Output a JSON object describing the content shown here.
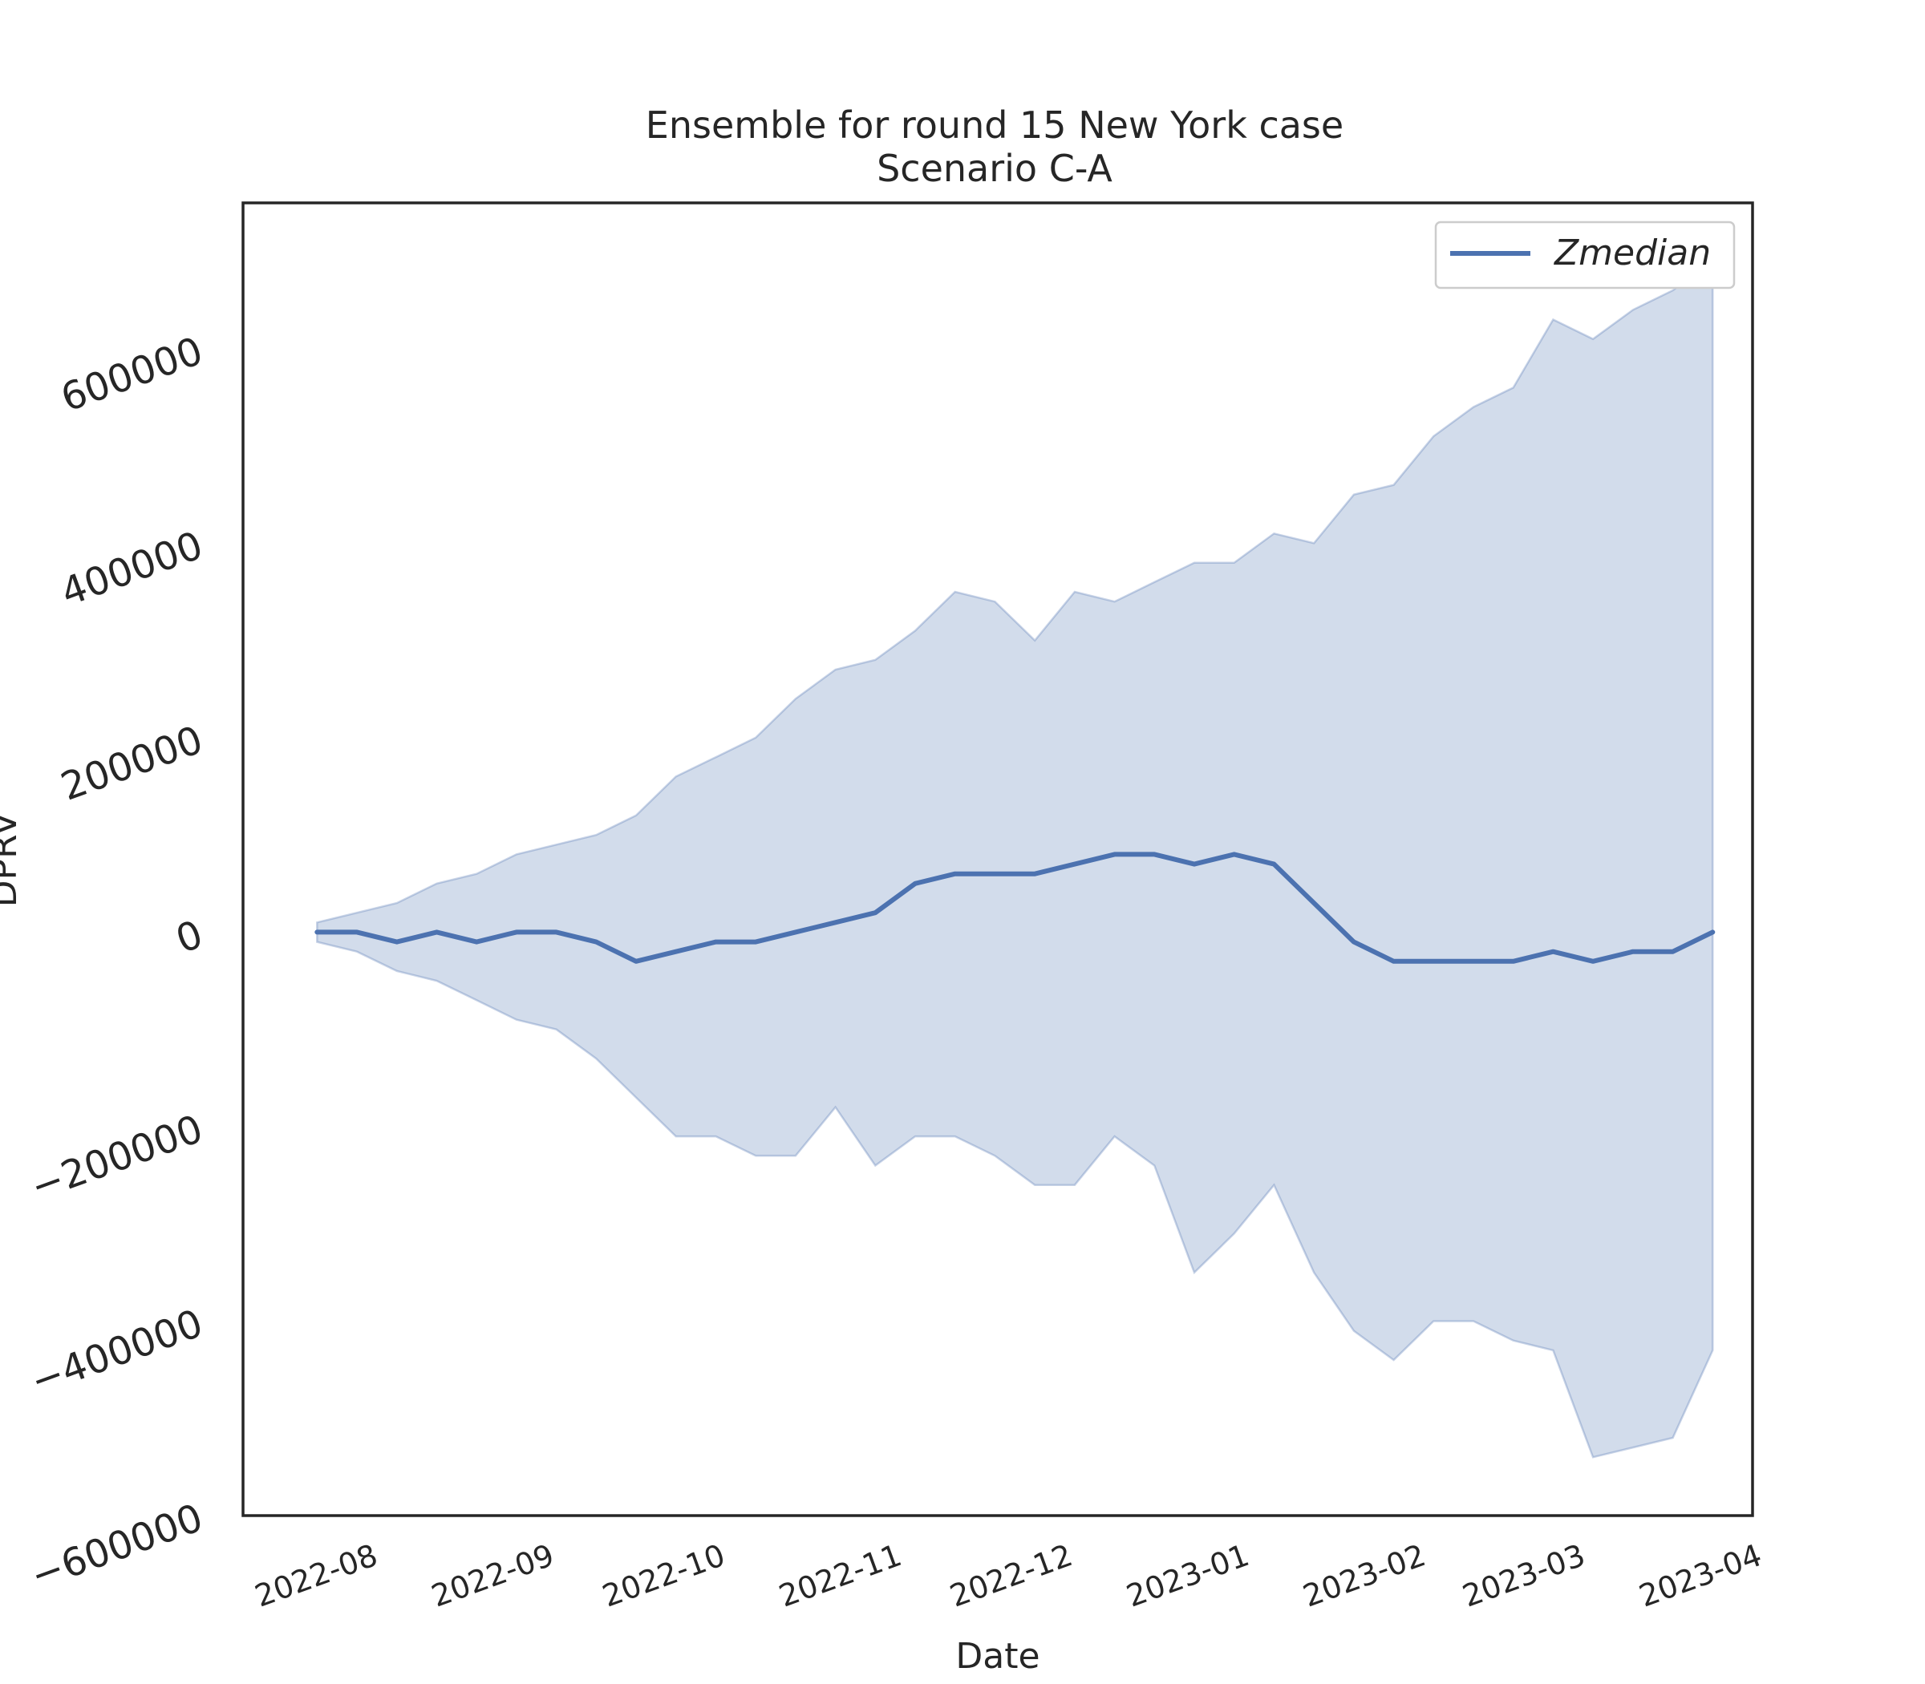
{
  "chart_data": {
    "type": "area",
    "title": "Ensemble for round 15 New York case",
    "subtitle": "Scenario C-A",
    "xlabel": "Date",
    "ylabel": "DPRV",
    "x_range": [
      "2022-07-10",
      "2023-04-01"
    ],
    "ylim": [
      -600000,
      750000
    ],
    "x_ticks": [
      "2022-08",
      "2022-09",
      "2022-10",
      "2022-11",
      "2022-12",
      "2023-01",
      "2023-02",
      "2023-03",
      "2023-04"
    ],
    "x_tick_dates": [
      "2022-08-01",
      "2022-09-01",
      "2022-10-01",
      "2022-11-01",
      "2022-12-01",
      "2023-01-01",
      "2023-02-01",
      "2023-03-01",
      "2023-04-01"
    ],
    "y_ticks": [
      -600000,
      -400000,
      -200000,
      0,
      200000,
      400000,
      600000
    ],
    "y_tick_labels": [
      "−600000",
      "−400000",
      "−200000",
      "0",
      "200000",
      "400000",
      "600000"
    ],
    "grid": false,
    "legend": {
      "placement": "top-right",
      "entries": [
        "Zmedian"
      ]
    },
    "colors": {
      "line": "#4c72b0",
      "band": "#4c72b0",
      "frame": "#262626"
    },
    "x": [
      "2022-07-23",
      "2022-07-30",
      "2022-08-06",
      "2022-08-13",
      "2022-08-20",
      "2022-08-27",
      "2022-09-03",
      "2022-09-10",
      "2022-09-17",
      "2022-09-24",
      "2022-10-01",
      "2022-10-08",
      "2022-10-15",
      "2022-10-22",
      "2022-10-29",
      "2022-11-05",
      "2022-11-12",
      "2022-11-19",
      "2022-11-26",
      "2022-12-03",
      "2022-12-10",
      "2022-12-17",
      "2022-12-24",
      "2022-12-31",
      "2023-01-07",
      "2023-01-14",
      "2023-01-21",
      "2023-01-28",
      "2023-02-04",
      "2023-02-11",
      "2023-02-18",
      "2023-02-25",
      "2023-03-04",
      "2023-03-11",
      "2023-03-18",
      "2023-03-25"
    ],
    "series": [
      {
        "name": "Zmedian",
        "type": "line",
        "values": [
          0,
          0,
          -10000,
          0,
          -10000,
          0,
          0,
          -10000,
          -30000,
          -20000,
          -10000,
          -10000,
          0,
          10000,
          20000,
          50000,
          60000,
          60000,
          60000,
          70000,
          80000,
          80000,
          70000,
          80000,
          70000,
          30000,
          -10000,
          -30000,
          -30000,
          -30000,
          -30000,
          -20000,
          -30000,
          -20000,
          -20000,
          0
        ]
      },
      {
        "type": "band",
        "upper": [
          10000,
          20000,
          30000,
          50000,
          60000,
          80000,
          90000,
          100000,
          120000,
          160000,
          180000,
          200000,
          240000,
          270000,
          280000,
          310000,
          350000,
          340000,
          300000,
          350000,
          340000,
          360000,
          380000,
          380000,
          410000,
          400000,
          450000,
          460000,
          510000,
          540000,
          560000,
          630000,
          610000,
          640000,
          660000,
          690000
        ],
        "lower": [
          -10000,
          -20000,
          -40000,
          -50000,
          -70000,
          -90000,
          -100000,
          -130000,
          -170000,
          -210000,
          -210000,
          -230000,
          -230000,
          -180000,
          -240000,
          -210000,
          -210000,
          -230000,
          -260000,
          -260000,
          -210000,
          -240000,
          -350000,
          -310000,
          -260000,
          -350000,
          -410000,
          -440000,
          -400000,
          -400000,
          -420000,
          -430000,
          -540000,
          -530000,
          -520000,
          -430000
        ]
      }
    ]
  }
}
